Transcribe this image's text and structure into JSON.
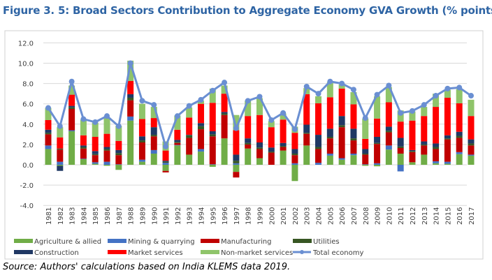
{
  "title": "Figure 3. 5: Broad Sectors Contribution to Aggregate Economy GVA Growth (% points)",
  "source": "Source: Authors' calculations based on India KLEMS data 2019.",
  "chart_data": {
    "type": "bar",
    "stacked": true,
    "title": "Figure 3. 5: Broad Sectors Contribution to Aggregate Economy GVA Growth (% points)",
    "xlabel": "",
    "ylabel": "",
    "ylim": [
      -4,
      12
    ],
    "yticks": [
      "-4.0",
      "-2.0",
      "0.0",
      "2.0",
      "4.0",
      "6.0",
      "8.0",
      "10.0",
      "12.0"
    ],
    "grid": true,
    "legend": "bottom",
    "categories": [
      "1981",
      "1982",
      "1983",
      "1984",
      "1985",
      "1986",
      "1987",
      "1988",
      "1989",
      "1990",
      "1991",
      "1992",
      "1993",
      "1994",
      "1995",
      "1996",
      "1997",
      "1998",
      "1999",
      "2000",
      "2001",
      "2002",
      "2003",
      "2004",
      "2005",
      "2006",
      "2007",
      "2008",
      "2009",
      "2010",
      "2011",
      "2012",
      "2013",
      "2014",
      "2015",
      "2016",
      "2017"
    ],
    "series": [
      {
        "name": "Agriculture & allied",
        "color": "#70ad47",
        "values": [
          1.55,
          -0.1,
          3.3,
          0.55,
          0.1,
          -0.1,
          -0.5,
          4.35,
          0.3,
          1.1,
          -0.6,
          1.9,
          1.0,
          1.3,
          -0.2,
          2.6,
          -0.7,
          1.6,
          0.65,
          0.0,
          1.4,
          -1.6,
          1.9,
          0.0,
          0.9,
          0.5,
          0.95,
          -0.1,
          -0.15,
          1.5,
          1.1,
          0.25,
          1.0,
          0.15,
          0.1,
          1.05,
          0.9
        ]
      },
      {
        "name": "Mining & quarrying",
        "color": "#4472c4",
        "values": [
          0.35,
          0.3,
          0.1,
          0.05,
          0.15,
          0.3,
          0.05,
          0.4,
          0.2,
          0.35,
          0.2,
          0.05,
          0.0,
          0.25,
          0.05,
          0.0,
          0.15,
          0.0,
          0.0,
          0.0,
          0.0,
          0.15,
          0.0,
          0.2,
          0.2,
          0.15,
          0.15,
          0.05,
          0.15,
          0.4,
          -0.65,
          0.0,
          0.0,
          0.2,
          0.2,
          0.2,
          0.1
        ]
      },
      {
        "name": "Manufacturing",
        "color": "#c00000",
        "values": [
          1.1,
          1.2,
          2.1,
          1.0,
          0.7,
          1.1,
          0.9,
          1.6,
          1.7,
          1.35,
          -0.15,
          0.2,
          1.65,
          1.95,
          2.75,
          2.3,
          -0.55,
          0.4,
          0.9,
          1.2,
          0.35,
          0.8,
          1.15,
          1.35,
          1.5,
          3.05,
          1.3,
          0.95,
          1.9,
          1.3,
          0.55,
          1.0,
          0.9,
          1.2,
          2.2,
          1.4,
          0.9
        ]
      },
      {
        "name": "Utilities",
        "color": "#375623",
        "values": [
          0.15,
          0.1,
          0.15,
          0.15,
          0.1,
          0.15,
          0.2,
          0.25,
          0.2,
          0.15,
          0.1,
          0.1,
          0.25,
          0.3,
          0.2,
          0.15,
          0.25,
          0.15,
          0.15,
          0.1,
          0.1,
          0.15,
          0.1,
          0.2,
          0.15,
          0.2,
          0.2,
          0.1,
          0.1,
          0.15,
          0.15,
          0.1,
          0.1,
          0.2,
          0.1,
          0.2,
          0.2
        ]
      },
      {
        "name": "Construction",
        "color": "#203864",
        "values": [
          0.3,
          -0.5,
          0.15,
          0.15,
          0.3,
          0.2,
          0.3,
          0.35,
          0.4,
          0.75,
          0.1,
          0.2,
          0.05,
          0.3,
          0.3,
          0.15,
          0.6,
          0.45,
          0.5,
          0.4,
          0.3,
          0.45,
          0.8,
          1.2,
          0.8,
          0.9,
          0.95,
          0.45,
          0.6,
          0.4,
          0.85,
          0.1,
          0.3,
          0.35,
          0.3,
          0.4,
          0.4
        ]
      },
      {
        "name": "Market services",
        "color": "#ff0000",
        "values": [
          0.95,
          1.1,
          1.1,
          1.0,
          1.4,
          1.3,
          0.9,
          1.3,
          1.7,
          0.9,
          1.0,
          1.0,
          1.7,
          1.9,
          2.8,
          1.8,
          2.4,
          2.2,
          2.7,
          2.0,
          2.3,
          1.6,
          3.0,
          3.1,
          3.1,
          2.7,
          2.4,
          1.0,
          1.8,
          2.4,
          1.6,
          2.9,
          2.5,
          3.6,
          3.7,
          2.8,
          2.3
        ]
      },
      {
        "name": "Non-market services",
        "color": "#8fc46a",
        "values": [
          1.2,
          1.0,
          0.9,
          1.55,
          1.4,
          1.6,
          1.5,
          2.0,
          1.5,
          1.1,
          0.9,
          1.4,
          1.0,
          0.3,
          1.4,
          0.8,
          1.5,
          1.5,
          1.65,
          0.6,
          0.6,
          0.6,
          0.6,
          0.7,
          1.5,
          0.4,
          1.2,
          2.0,
          2.2,
          1.5,
          1.1,
          0.9,
          0.9,
          1.3,
          0.8,
          1.4,
          1.6
        ]
      }
    ],
    "line": {
      "name": "Total economy",
      "color": "#6a8fd2",
      "values": [
        5.6,
        3.8,
        8.2,
        4.5,
        4.2,
        4.8,
        3.8,
        10.0,
        6.3,
        5.9,
        1.8,
        4.8,
        5.8,
        6.4,
        7.3,
        8.1,
        3.6,
        6.3,
        6.7,
        4.4,
        5.1,
        3.5,
        7.7,
        7.0,
        8.2,
        8.0,
        7.4,
        4.6,
        6.9,
        7.8,
        5.1,
        5.3,
        5.9,
        6.8,
        7.5,
        7.6,
        6.8
      ]
    }
  }
}
